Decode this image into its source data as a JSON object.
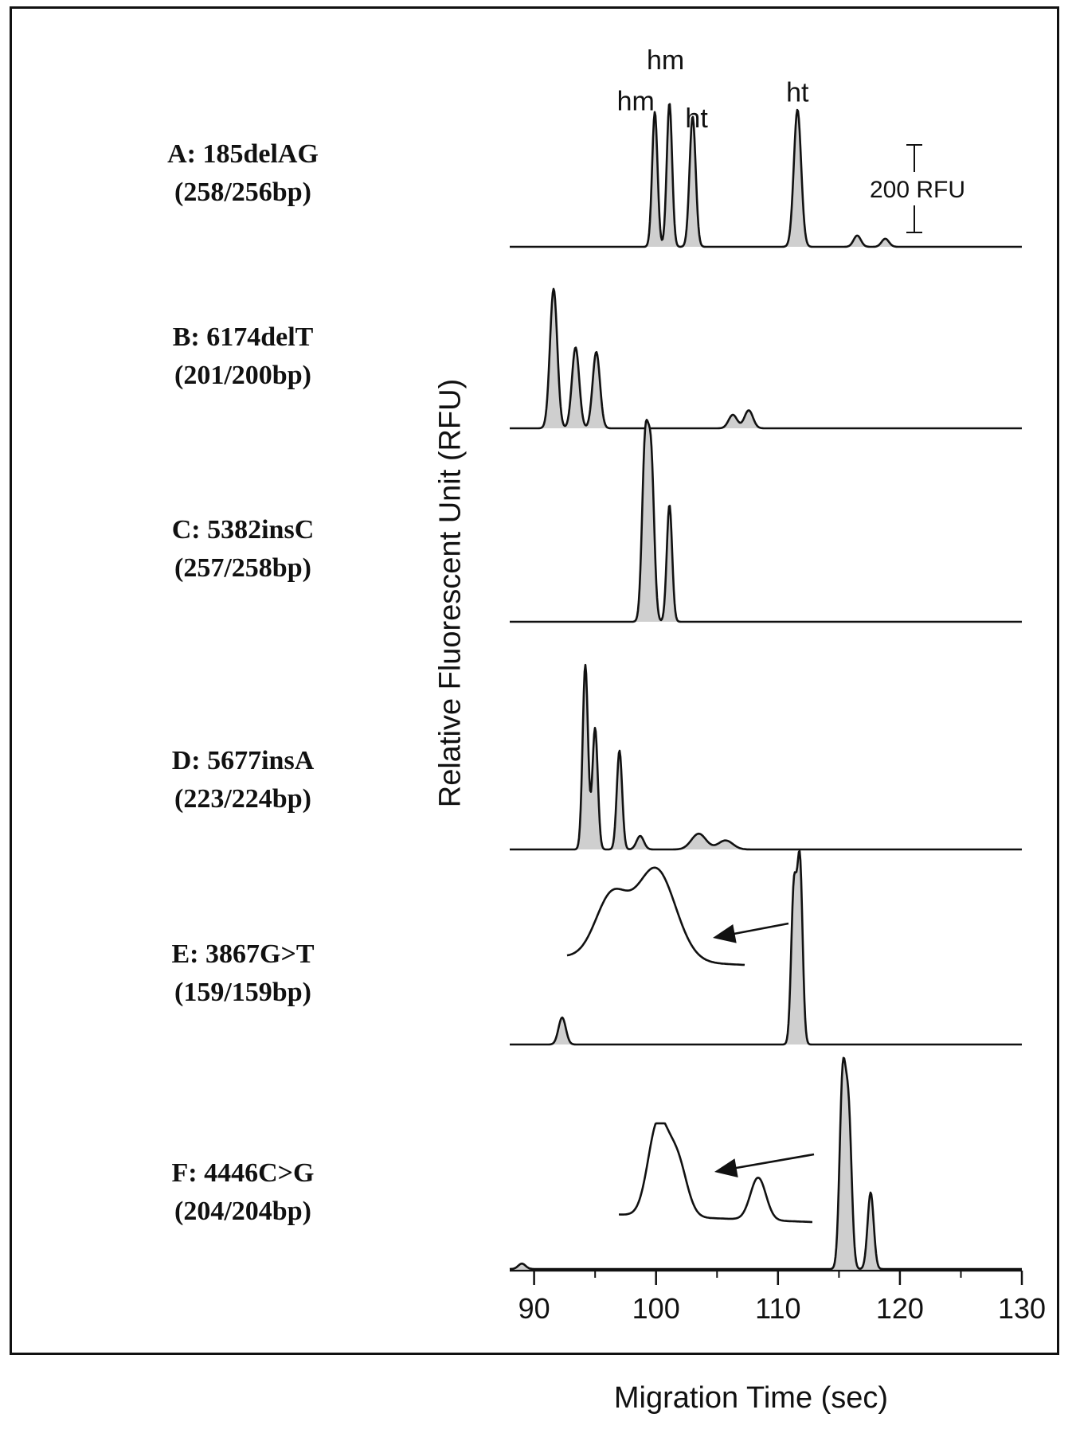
{
  "chart_data": {
    "type": "line",
    "xlabel": "Migration Time (sec)",
    "ylabel": "Relative Fluorescent Unit (RFU)",
    "xlim": [
      88,
      130
    ],
    "xticks": [
      90,
      100,
      110,
      120,
      130
    ],
    "scale_bar": {
      "label": "200 RFU",
      "value": 200
    },
    "panels": [
      {
        "id": "A",
        "label_line1": "A: 185delAG",
        "label_line2": "(258/256bp)",
        "peaks": [
          {
            "x": 99.9,
            "height": 300,
            "width": 0.22
          },
          {
            "x": 101.1,
            "height": 320,
            "width": 0.22
          },
          {
            "x": 103.0,
            "height": 290,
            "width": 0.25
          },
          {
            "x": 111.6,
            "height": 305,
            "width": 0.3
          },
          {
            "x": 116.5,
            "height": 25,
            "width": 0.3
          },
          {
            "x": 118.8,
            "height": 18,
            "width": 0.3
          }
        ],
        "peak_labels": [
          {
            "text": "hm",
            "x": 99.9
          },
          {
            "text": "hm",
            "x": 101.1
          },
          {
            "text": "ht",
            "x": 103.0
          },
          {
            "text": "ht",
            "x": 111.6
          }
        ]
      },
      {
        "id": "B",
        "label_line1": "B: 6174delT",
        "label_line2": "(201/200bp)",
        "peaks": [
          {
            "x": 91.6,
            "height": 310,
            "width": 0.3
          },
          {
            "x": 93.4,
            "height": 180,
            "width": 0.3
          },
          {
            "x": 95.1,
            "height": 170,
            "width": 0.3
          },
          {
            "x": 106.3,
            "height": 30,
            "width": 0.35
          },
          {
            "x": 107.6,
            "height": 40,
            "width": 0.35
          }
        ],
        "peak_labels": []
      },
      {
        "id": "C",
        "label_line1": "C: 5382insC",
        "label_line2": "(257/258bp)",
        "peaks": [
          {
            "x": 99.1,
            "height": 380,
            "width": 0.25
          },
          {
            "x": 99.6,
            "height": 350,
            "width": 0.25
          },
          {
            "x": 101.1,
            "height": 260,
            "width": 0.22
          }
        ],
        "peak_labels": []
      },
      {
        "id": "D",
        "label_line1": "D: 5677insA",
        "label_line2": "(223/224bp)",
        "peaks": [
          {
            "x": 94.2,
            "height": 410,
            "width": 0.22
          },
          {
            "x": 95.0,
            "height": 270,
            "width": 0.22
          },
          {
            "x": 97.0,
            "height": 220,
            "width": 0.22
          },
          {
            "x": 98.7,
            "height": 30,
            "width": 0.3
          },
          {
            "x": 103.5,
            "height": 35,
            "width": 0.6
          },
          {
            "x": 105.7,
            "height": 20,
            "width": 0.6
          }
        ],
        "peak_labels": []
      },
      {
        "id": "E",
        "label_line1": "E: 3867G>T",
        "label_line2": "(159/159bp)",
        "peaks": [
          {
            "x": 92.3,
            "height": 60,
            "width": 0.3
          },
          {
            "x": 111.3,
            "height": 340,
            "width": 0.22
          },
          {
            "x": 111.8,
            "height": 400,
            "width": 0.22
          }
        ],
        "peak_labels": []
      },
      {
        "id": "F",
        "label_line1": "F: 4446C>G",
        "label_line2": "(204/204bp)",
        "peaks": [
          {
            "x": 89.0,
            "height": 12,
            "width": 0.3
          },
          {
            "x": 115.3,
            "height": 410,
            "width": 0.25
          },
          {
            "x": 115.8,
            "height": 330,
            "width": 0.25
          },
          {
            "x": 117.6,
            "height": 170,
            "width": 0.25
          }
        ],
        "peak_labels": []
      }
    ],
    "insets": [
      {
        "panel": "E",
        "peaks": [
          {
            "pos": 0.25,
            "height": 0.6,
            "width": 0.09
          },
          {
            "pos": 0.5,
            "height": 0.9,
            "width": 0.11
          }
        ]
      },
      {
        "panel": "F",
        "peaks": [
          {
            "pos": 0.2,
            "height": 0.95,
            "width": 0.05
          },
          {
            "pos": 0.3,
            "height": 0.6,
            "width": 0.05
          },
          {
            "pos": 0.72,
            "height": 0.45,
            "width": 0.04
          }
        ]
      }
    ]
  }
}
